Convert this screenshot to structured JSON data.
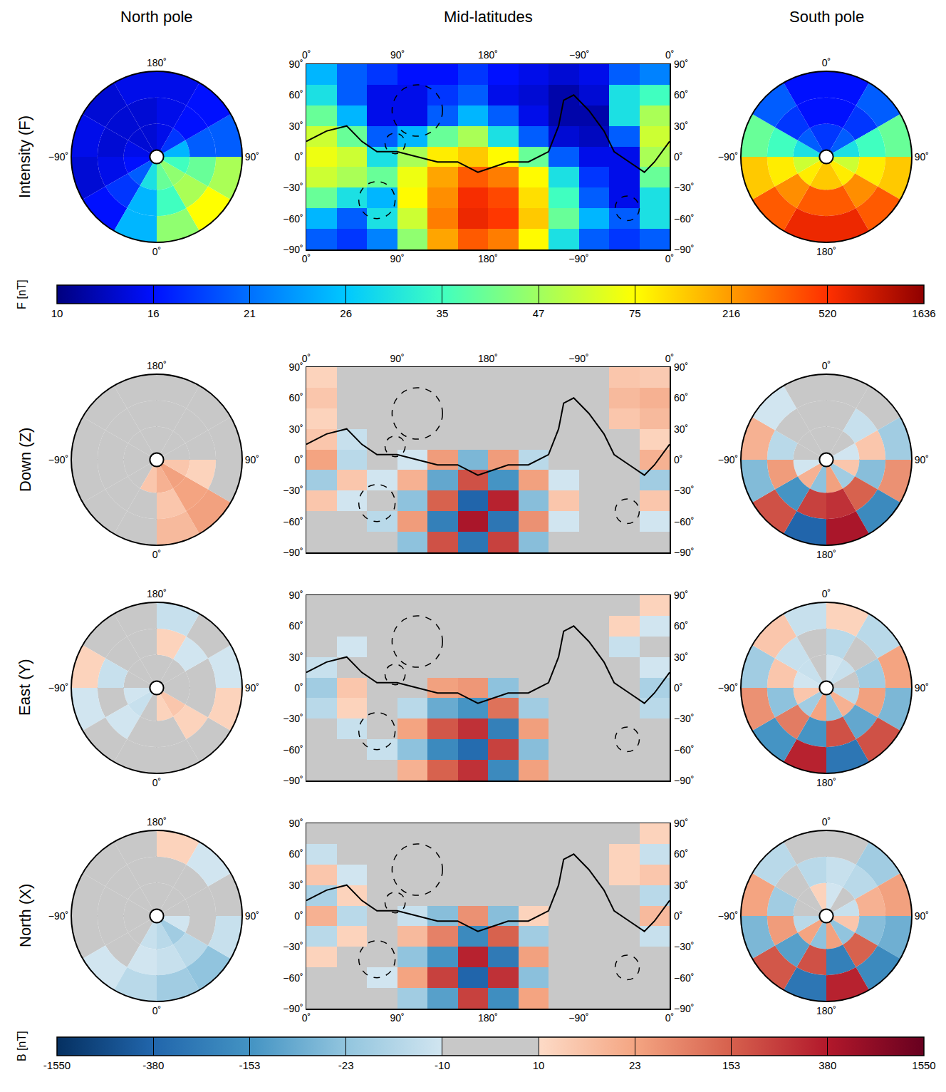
{
  "chart_data": {
    "type": "heatmap",
    "grid": true,
    "columns": [
      "North pole",
      "Mid-latitudes",
      "South pole"
    ],
    "scales": {
      "F": {
        "title": "F [nT]",
        "ticks": [
          10,
          16,
          21,
          26,
          35,
          47,
          75,
          216,
          520,
          1636
        ],
        "colors": [
          [
            "#00007f",
            "#0010ff"
          ],
          [
            "#0010ff",
            "#0070ff"
          ],
          [
            "#0070ff",
            "#00c8ff"
          ],
          [
            "#00c8ff",
            "#40ffc0"
          ],
          [
            "#40ffc0",
            "#a0ff60"
          ],
          [
            "#a0ff60",
            "#ffff00"
          ],
          [
            "#ffff00",
            "#ff9a00"
          ],
          [
            "#ff9a00",
            "#ff3000"
          ],
          [
            "#ff3000",
            "#8f0000"
          ]
        ]
      },
      "B": {
        "title": "B [nT]",
        "ticks": [
          -1550,
          -380,
          -153,
          -23,
          -10,
          10,
          23,
          153,
          380,
          1550
        ],
        "colors": [
          [
            "#053061",
            "#2166ac"
          ],
          [
            "#2166ac",
            "#4393c3"
          ],
          [
            "#4393c3",
            "#92c5de"
          ],
          [
            "#92c5de",
            "#d1e5f0"
          ],
          [
            "#c8c8c8",
            "#c8c8c8"
          ],
          [
            "#fddbc7",
            "#f4a582"
          ],
          [
            "#f4a582",
            "#d6604d"
          ],
          [
            "#d6604d",
            "#b2182b"
          ],
          [
            "#b2182b",
            "#67001f"
          ]
        ]
      }
    },
    "map": {
      "xlim": [
        0,
        360
      ],
      "xticks": [
        {
          "value": 0,
          "label": "0˚"
        },
        {
          "value": 90,
          "label": "90˚"
        },
        {
          "value": 180,
          "label": "180˚"
        },
        {
          "value": 270,
          "label": "−90˚"
        },
        {
          "value": 360,
          "label": "0˚"
        }
      ],
      "ylim": [
        -90,
        90
      ],
      "yticks": [
        {
          "value": 90,
          "label": "90˚"
        },
        {
          "value": 60,
          "label": "60˚"
        },
        {
          "value": 30,
          "label": "30˚"
        },
        {
          "value": 0,
          "label": "0˚"
        },
        {
          "value": -30,
          "label": "−30˚"
        },
        {
          "value": -60,
          "label": "−60˚"
        },
        {
          "value": -90,
          "label": "−90˚"
        }
      ],
      "lon_bins": [
        0,
        30,
        60,
        90,
        120,
        150,
        180,
        210,
        240,
        270,
        300,
        330,
        360
      ],
      "lat_bins": [
        -90,
        -70,
        -50,
        -30,
        -10,
        10,
        30,
        50,
        70,
        90
      ],
      "boundary": {
        "lon": [
          0,
          20,
          40,
          55,
          70,
          90,
          110,
          130,
          150,
          170,
          185,
          200,
          220,
          240,
          250,
          255,
          265,
          280,
          295,
          305,
          320,
          335,
          345,
          360
        ],
        "lat": [
          15,
          25,
          30,
          15,
          5,
          5,
          0,
          -5,
          -5,
          -15,
          -10,
          -5,
          -5,
          5,
          30,
          55,
          60,
          45,
          25,
          5,
          -5,
          -15,
          -5,
          15
        ]
      },
      "basins": [
        {
          "lon": 110,
          "lat": 45,
          "radius": 25
        },
        {
          "lon": 88,
          "lat": 13,
          "radius": 10
        },
        {
          "lon": 70,
          "lat": -42,
          "radius": 18
        },
        {
          "lon": 318,
          "lat": -50,
          "radius": 12
        }
      ]
    },
    "polar": {
      "rlim": [
        0,
        30
      ],
      "r_bins": [
        0,
        10,
        20,
        30
      ],
      "lon_bins": [
        0,
        30,
        60,
        90,
        120,
        150,
        180,
        210,
        240,
        270,
        300,
        330,
        360
      ],
      "theta_ticks": [
        {
          "value": 0,
          "label": "0˚"
        },
        {
          "value": 90,
          "label": "90˚"
        },
        {
          "value": 180,
          "label": "180˚"
        },
        {
          "value": 270,
          "label": "−90˚"
        }
      ]
    },
    "rows": [
      {
        "label": "Intensity (F)",
        "scale": "F",
        "north": [
          [
            40,
            45,
            35,
            25,
            18,
            15,
            14,
            14,
            15,
            16,
            20,
            30
          ],
          [
            35,
            50,
            40,
            20,
            16,
            15,
            14,
            14,
            14,
            15,
            18,
            25
          ],
          [
            45,
            75,
            50,
            20,
            16,
            15,
            15,
            14,
            15,
            14,
            16,
            25
          ]
        ],
        "mid": [
          [
            20,
            18,
            22,
            45,
            200,
            400,
            300,
            80,
            30,
            20,
            18,
            20
          ],
          [
            25,
            20,
            30,
            60,
            300,
            700,
            500,
            150,
            40,
            25,
            20,
            30
          ],
          [
            40,
            30,
            25,
            80,
            250,
            600,
            450,
            120,
            35,
            20,
            15,
            30
          ],
          [
            60,
            50,
            40,
            70,
            200,
            400,
            300,
            80,
            30,
            18,
            15,
            40
          ],
          [
            70,
            60,
            30,
            50,
            100,
            150,
            80,
            40,
            20,
            15,
            15,
            50
          ],
          [
            60,
            40,
            20,
            25,
            40,
            50,
            30,
            20,
            14,
            13,
            20,
            60
          ],
          [
            40,
            25,
            15,
            15,
            20,
            25,
            20,
            15,
            12,
            12,
            30,
            50
          ],
          [
            30,
            20,
            15,
            15,
            18,
            20,
            15,
            14,
            12,
            14,
            30,
            35
          ],
          [
            25,
            20,
            18,
            16,
            16,
            18,
            16,
            15,
            14,
            15,
            20,
            22
          ]
        ],
        "south": [
          [
            18,
            20,
            30,
            60,
            100,
            150,
            150,
            100,
            60,
            30,
            20,
            18
          ],
          [
            16,
            18,
            35,
            100,
            250,
            400,
            400,
            250,
            100,
            35,
            18,
            16
          ],
          [
            16,
            20,
            40,
            150,
            400,
            700,
            700,
            400,
            150,
            40,
            20,
            16
          ]
        ]
      },
      {
        "label": "Down (Z)",
        "scale": "B",
        "north": [
          [
            20,
            30,
            15,
            5,
            2,
            -3,
            2,
            -2,
            3,
            -5,
            -8,
            15
          ],
          [
            15,
            25,
            12,
            4,
            3,
            2,
            -2,
            3,
            2,
            4,
            5,
            10
          ],
          [
            18,
            30,
            10,
            5,
            2,
            3,
            2,
            -2,
            3,
            2,
            4,
            8
          ]
        ],
        "mid": [
          [
            5,
            -5,
            10,
            -30,
            200,
            -300,
            250,
            -40,
            5,
            3,
            -5,
            8
          ],
          [
            -8,
            5,
            -15,
            40,
            -250,
            500,
            -300,
            60,
            -10,
            5,
            8,
            -10
          ],
          [
            15,
            -10,
            10,
            -30,
            150,
            -400,
            350,
            -40,
            15,
            -5,
            -5,
            15
          ],
          [
            -20,
            15,
            -10,
            20,
            -100,
            200,
            -150,
            30,
            -10,
            5,
            5,
            -20
          ],
          [
            25,
            -15,
            8,
            -10,
            40,
            -60,
            40,
            -15,
            5,
            -3,
            -5,
            20
          ],
          [
            15,
            -12,
            5,
            3,
            -5,
            8,
            -5,
            3,
            2,
            -2,
            -8,
            12
          ],
          [
            12,
            -8,
            4,
            3,
            2,
            -3,
            2,
            1,
            1,
            -1,
            15,
            18
          ],
          [
            15,
            8,
            5,
            2,
            3,
            2,
            1,
            2,
            2,
            5,
            18,
            20
          ],
          [
            12,
            8,
            5,
            3,
            2,
            3,
            2,
            3,
            4,
            6,
            15,
            14
          ]
        ],
        "south": [
          [
            -8,
            5,
            -10,
            15,
            -20,
            30,
            -30,
            20,
            -10,
            5,
            -8,
            -5
          ],
          [
            5,
            -12,
            15,
            -40,
            150,
            300,
            250,
            -150,
            40,
            -15,
            8,
            -6
          ],
          [
            -6,
            10,
            -20,
            60,
            -200,
            500,
            -400,
            200,
            -50,
            20,
            -10,
            5
          ]
        ]
      },
      {
        "label": "East (Y)",
        "scale": "B",
        "north": [
          [
            12,
            15,
            8,
            -5,
            4,
            -6,
            5,
            -8,
            6,
            -10,
            -12,
            10
          ],
          [
            10,
            12,
            -6,
            8,
            -10,
            12,
            -8,
            10,
            -12,
            8,
            -10,
            8
          ],
          [
            -8,
            10,
            12,
            -10,
            8,
            -12,
            10,
            -8,
            12,
            -10,
            8,
            -6
          ]
        ],
        "mid": [
          [
            3,
            -4,
            8,
            20,
            150,
            300,
            -200,
            30,
            5,
            -3,
            -4,
            5
          ],
          [
            -6,
            8,
            -12,
            -30,
            -200,
            -350,
            250,
            -40,
            -8,
            6,
            5,
            -8
          ],
          [
            10,
            -12,
            8,
            25,
            180,
            300,
            -250,
            35,
            10,
            -5,
            -6,
            10
          ],
          [
            -15,
            12,
            -8,
            -15,
            -90,
            -150,
            120,
            -20,
            -8,
            4,
            4,
            -15
          ],
          [
            -20,
            15,
            -6,
            10,
            30,
            50,
            -30,
            10,
            4,
            -3,
            -4,
            -18
          ],
          [
            -12,
            10,
            -5,
            -3,
            5,
            -6,
            5,
            -3,
            -2,
            2,
            -6,
            -10
          ],
          [
            8,
            -10,
            3,
            -2,
            -2,
            3,
            -2,
            1,
            1,
            -1,
            -12,
            10
          ],
          [
            -8,
            6,
            4,
            2,
            -3,
            2,
            1,
            -2,
            2,
            -4,
            12,
            -10
          ],
          [
            10,
            -6,
            4,
            3,
            -2,
            -3,
            2,
            3,
            -4,
            5,
            -8,
            12
          ]
        ],
        "south": [
          [
            -10,
            -12,
            8,
            -15,
            20,
            -25,
            25,
            -20,
            15,
            -10,
            -12,
            -8
          ],
          [
            -15,
            10,
            -20,
            30,
            -100,
            200,
            -150,
            100,
            -30,
            15,
            -12,
            10
          ],
          [
            12,
            -15,
            25,
            -60,
            200,
            -300,
            350,
            -150,
            60,
            -20,
            15,
            -12
          ]
        ]
      },
      {
        "label": "North (X)",
        "scale": "B",
        "north": [
          [
            -15,
            -20,
            -10,
            5,
            -6,
            4,
            -5,
            6,
            -4,
            5,
            -8,
            -12
          ],
          [
            -12,
            -15,
            -8,
            6,
            -5,
            -8,
            6,
            -5,
            8,
            -6,
            5,
            -10
          ],
          [
            -20,
            -25,
            -12,
            8,
            -10,
            12,
            -8,
            10,
            -6,
            8,
            -10,
            -15
          ]
        ],
        "mid": [
          [
            4,
            -5,
            6,
            -20,
            -120,
            250,
            -180,
            25,
            4,
            -3,
            -4,
            6
          ],
          [
            -8,
            6,
            -10,
            25,
            250,
            -400,
            300,
            -35,
            -8,
            5,
            6,
            -8
          ],
          [
            12,
            -8,
            10,
            -25,
            -150,
            350,
            -280,
            30,
            10,
            -5,
            -5,
            10
          ],
          [
            -15,
            12,
            -8,
            18,
            90,
            -200,
            150,
            -20,
            -8,
            4,
            4,
            -12
          ],
          [
            20,
            -15,
            6,
            -12,
            -40,
            60,
            -40,
            12,
            4,
            -3,
            -4,
            18
          ],
          [
            -18,
            12,
            -5,
            4,
            6,
            -8,
            5,
            -3,
            -2,
            2,
            -8,
            -15
          ],
          [
            15,
            -10,
            4,
            3,
            -2,
            3,
            2,
            1,
            1,
            -1,
            12,
            15
          ],
          [
            -12,
            8,
            5,
            2,
            3,
            2,
            1,
            2,
            2,
            4,
            12,
            -12
          ],
          [
            10,
            -8,
            5,
            3,
            2,
            -3,
            2,
            2,
            3,
            -5,
            10,
            12
          ]
        ],
        "south": [
          [
            -10,
            8,
            -12,
            15,
            -25,
            30,
            -30,
            25,
            -15,
            10,
            -8,
            12
          ],
          [
            -12,
            -15,
            20,
            -40,
            150,
            -250,
            200,
            -120,
            40,
            -20,
            10,
            -15
          ],
          [
            10,
            -20,
            30,
            -80,
            -200,
            350,
            -300,
            180,
            -60,
            25,
            -15,
            10
          ]
        ]
      }
    ]
  }
}
